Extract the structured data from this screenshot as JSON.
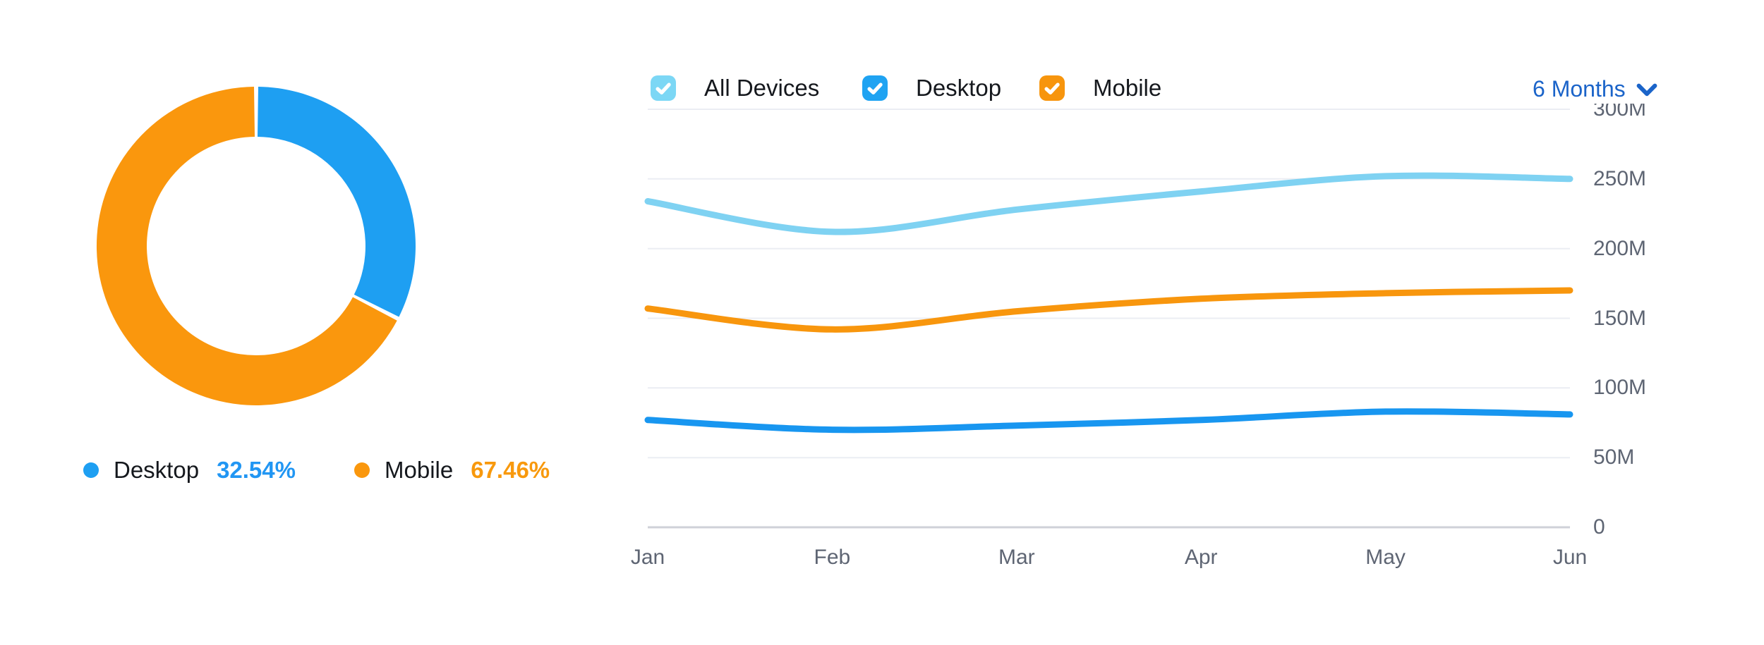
{
  "page": {
    "background": "#ffffff"
  },
  "donut_section": {
    "legend": [
      {
        "label": "Desktop",
        "percent": "32.54%",
        "dot_color": "#1e9ff2",
        "percent_color": "#2196f3"
      },
      {
        "label": "Mobile",
        "percent": "67.46%",
        "dot_color": "#fa970d",
        "percent_color": "#f8990d"
      }
    ]
  },
  "line_section": {
    "filters": [
      {
        "label": "All Devices",
        "checked": true,
        "color": "#7cd7f5"
      },
      {
        "label": "Desktop",
        "checked": true,
        "color": "#1fa3f2"
      },
      {
        "label": "Mobile",
        "checked": true,
        "color": "#f7950d"
      }
    ],
    "range_selector": {
      "label": "6 Months",
      "color": "#1b64c9"
    }
  },
  "chart_data": [
    {
      "type": "pie",
      "donut": true,
      "labels": [
        "Desktop",
        "Mobile"
      ],
      "values": [
        32.54,
        67.46
      ],
      "unit": "%",
      "colors": [
        "#1e9ff2",
        "#fa970d"
      ],
      "start_angle_deg": -90,
      "direction": "clockwise",
      "legend_position": "bottom"
    },
    {
      "type": "line",
      "categories": [
        "Jan",
        "Feb",
        "Mar",
        "Apr",
        "May",
        "Jun"
      ],
      "series": [
        {
          "name": "All Devices",
          "color": "#7fd2f2",
          "values_millions": [
            234,
            212,
            228,
            241,
            252,
            250
          ]
        },
        {
          "name": "Mobile",
          "color": "#f8960d",
          "values_millions": [
            157,
            142,
            155,
            164,
            168,
            170
          ]
        },
        {
          "name": "Desktop",
          "color": "#1896f0",
          "values_millions": [
            77,
            70,
            73,
            77,
            83,
            81
          ]
        }
      ],
      "unit": "M",
      "ylim_millions": [
        0,
        300
      ],
      "ytick_step_millions": 50,
      "ytick_labels": [
        "0",
        "50M",
        "100M",
        "150M",
        "200M",
        "250M",
        "300M"
      ],
      "grid": true,
      "smooth": true,
      "grid_color": "#ebedf3",
      "axis_line_color": "#cfd1d8",
      "tick_text_color": "#5e6573"
    }
  ]
}
